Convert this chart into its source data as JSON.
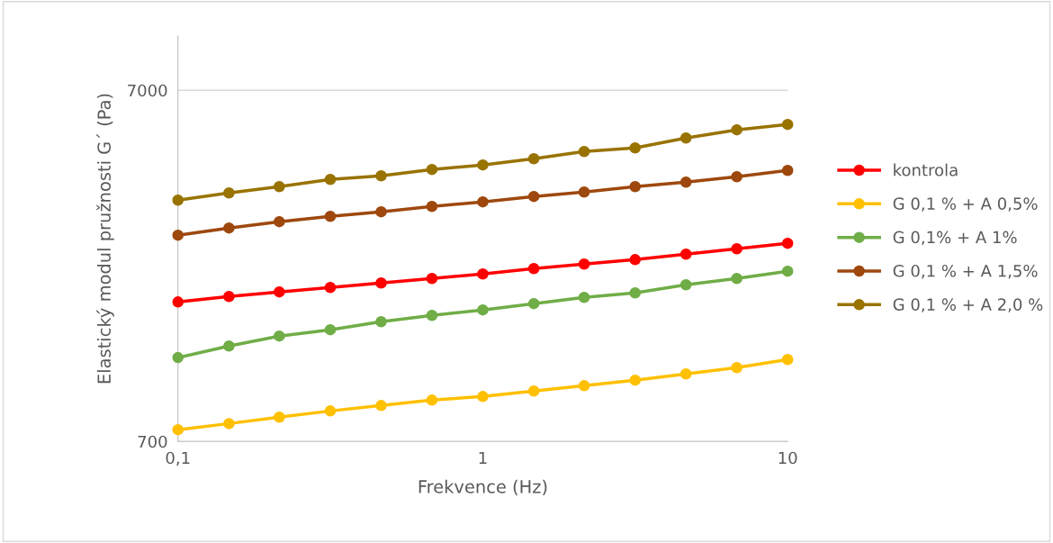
{
  "chart_data": {
    "type": "line",
    "xlabel": "Frekvence (Hz)",
    "ylabel": "Elastický modul pružnosti G´ (Pa)",
    "x": [
      0.1,
      0.147,
      0.215,
      0.316,
      0.464,
      0.681,
      1,
      1.47,
      2.15,
      3.16,
      4.64,
      6.81,
      10
    ],
    "series": [
      {
        "name": "kontrola",
        "color": "#ff0000",
        "values": [
          1747,
          1811,
          1866,
          1921,
          1978,
          2038,
          2099,
          2174,
          2239,
          2306,
          2390,
          2476,
          2566
        ]
      },
      {
        "name": "G 0,1 % + A 0,5%",
        "color": "#ffc000",
        "values": [
          756,
          787,
          821,
          855,
          886,
          918,
          940,
          974,
          1009,
          1046,
          1090,
          1136,
          1198
        ]
      },
      {
        "name": "G 0,1% + A 1%",
        "color": "#70ad47",
        "values": [
          1213,
          1309,
          1397,
          1456,
          1535,
          1600,
          1658,
          1728,
          1800,
          1854,
          1955,
          2038,
          2137
        ]
      },
      {
        "name": "G 0,1 % + A 1,5%",
        "color": "#9e480e",
        "values": [
          2706,
          2837,
          2957,
          3062,
          3155,
          3268,
          3367,
          3488,
          3592,
          3721,
          3833,
          3971,
          4138
        ]
      },
      {
        "name": "G 0,1 % + A 2,0 %",
        "color": "#997300",
        "values": [
          3406,
          3571,
          3721,
          3900,
          3994,
          4164,
          4289,
          4469,
          4685,
          4797,
          5118,
          5400,
          5594
        ]
      }
    ],
    "log": "xy",
    "xlim": [
      0.1,
      10
    ],
    "xticks": [
      {
        "value": 0.1,
        "label": "0,1"
      },
      1,
      10
    ],
    "ylim": [
      700,
      10000
    ],
    "yticks": [
      700,
      7000
    ],
    "grid": "y",
    "legend": "right",
    "marker": "circle",
    "line_style": "solid"
  }
}
